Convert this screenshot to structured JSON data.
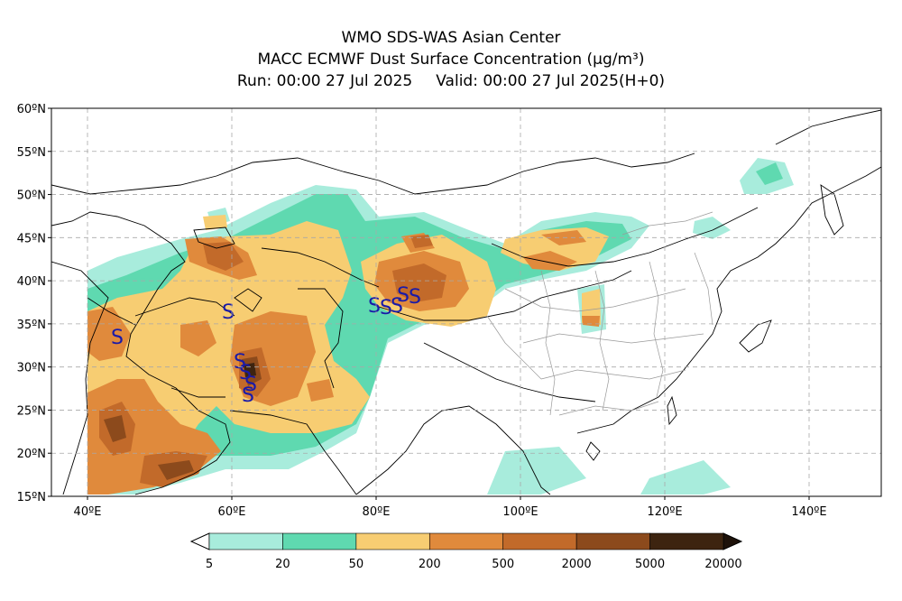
{
  "title": {
    "line1": "WMO SDS-WAS Asian Center",
    "line2_main": "MACC ECMWF Dust Surface Concentration ",
    "line2_unit": "(μg/m³)",
    "run": "Run: 00:00 27 Jul 2025",
    "valid": "Valid: 00:00 27 Jul 2025(H+0)"
  },
  "axes": {
    "lat_labels": [
      "60ºN",
      "55ºN",
      "50ºN",
      "45ºN",
      "40ºN",
      "35ºN",
      "30ºN",
      "25ºN",
      "20ºN",
      "15ºN"
    ],
    "lon_labels": [
      "40ºE",
      "60ºE",
      "80ºE",
      "100ºE",
      "120ºE",
      "140ºE"
    ],
    "lat_values": [
      60,
      55,
      50,
      45,
      40,
      35,
      30,
      25,
      20,
      15
    ],
    "lon_values": [
      40,
      60,
      80,
      100,
      120,
      140
    ],
    "lon_range": [
      35,
      150
    ],
    "lat_range": [
      15,
      60
    ],
    "grid": true
  },
  "colorbar": {
    "labels": [
      "5",
      "20",
      "50",
      "200",
      "500",
      "2000",
      "5000",
      "20000"
    ],
    "colors": [
      "#a8ecdc",
      "#5fd9b0",
      "#f7cd72",
      "#e08a3c",
      "#c26a2a",
      "#8c4a1c",
      "#3d2410"
    ],
    "under_color": "#ffffff",
    "over_color": "#1e120a"
  },
  "dust_symbol": "S"
}
